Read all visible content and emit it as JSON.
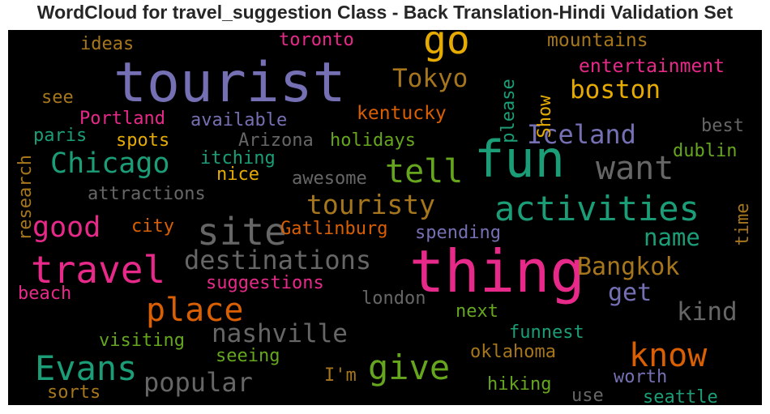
{
  "chart_data": {
    "type": "wordcloud",
    "title": "WordCloud for travel_suggestion Class - Back Translation-Hindi Validation Set",
    "background": "#000000",
    "colormap": "Dark2",
    "words": [
      {
        "text": "tourist",
        "weight": 68,
        "color": "#7570b3"
      },
      {
        "text": "thing",
        "weight": 72,
        "color": "#e7298a"
      },
      {
        "text": "fun",
        "weight": 62,
        "color": "#1b9e77"
      },
      {
        "text": "go",
        "weight": 48,
        "color": "#e6ab02"
      },
      {
        "text": "travel",
        "weight": 46,
        "color": "#e7298a"
      },
      {
        "text": "site",
        "weight": 46,
        "color": "#666666"
      },
      {
        "text": "activities",
        "weight": 42,
        "color": "#1b9e77"
      },
      {
        "text": "Evans",
        "weight": 42,
        "color": "#1b9e77"
      },
      {
        "text": "give",
        "weight": 42,
        "color": "#66a61e"
      },
      {
        "text": "know",
        "weight": 40,
        "color": "#d95f02"
      },
      {
        "text": "place",
        "weight": 40,
        "color": "#d95f02"
      },
      {
        "text": "tell",
        "weight": 40,
        "color": "#66a61e"
      },
      {
        "text": "want",
        "weight": 40,
        "color": "#666666"
      },
      {
        "text": "Chicago",
        "weight": 35,
        "color": "#1b9e77"
      },
      {
        "text": "good",
        "weight": 35,
        "color": "#e7298a"
      },
      {
        "text": "touristy",
        "weight": 33,
        "color": "#a6761d"
      },
      {
        "text": "destinations",
        "weight": 32,
        "color": "#666666"
      },
      {
        "text": "popular",
        "weight": 32,
        "color": "#666666"
      },
      {
        "text": "Iceland",
        "weight": 32,
        "color": "#7570b3"
      },
      {
        "text": "boston",
        "weight": 31,
        "color": "#e6ab02"
      },
      {
        "text": "Tokyo",
        "weight": 31,
        "color": "#a6761d"
      },
      {
        "text": "nashville",
        "weight": 31,
        "color": "#666666"
      },
      {
        "text": "kind",
        "weight": 31,
        "color": "#666666"
      },
      {
        "text": "Bangkok",
        "weight": 30,
        "color": "#a6761d"
      },
      {
        "text": "get",
        "weight": 30,
        "color": "#7570b3"
      },
      {
        "text": "name",
        "weight": 29,
        "color": "#1b9e77"
      },
      {
        "text": "mountains",
        "weight": 23,
        "color": "#a6761d"
      },
      {
        "text": "entertainment",
        "weight": 23,
        "color": "#e7298a"
      },
      {
        "text": "kentucky",
        "weight": 23,
        "color": "#d95f02"
      },
      {
        "text": "Gatlinburg",
        "weight": 22,
        "color": "#d95f02"
      },
      {
        "text": "suggestions",
        "weight": 22,
        "color": "#e7298a"
      },
      {
        "text": "Portland",
        "weight": 22,
        "color": "#e7298a"
      },
      {
        "text": "available",
        "weight": 22,
        "color": "#7570b3"
      },
      {
        "text": "attractions",
        "weight": 22,
        "color": "#666666"
      },
      {
        "text": "spending",
        "weight": 22,
        "color": "#7570b3"
      },
      {
        "text": "oklahoma",
        "weight": 22,
        "color": "#a6761d"
      },
      {
        "text": "visiting",
        "weight": 22,
        "color": "#66a61e"
      },
      {
        "text": "funnest",
        "weight": 22,
        "color": "#1b9e77"
      },
      {
        "text": "hiking",
        "weight": 22,
        "color": "#66a61e"
      },
      {
        "text": "worth",
        "weight": 22,
        "color": "#7570b3"
      },
      {
        "text": "seattle",
        "weight": 22,
        "color": "#1b9e77"
      },
      {
        "text": "ideas",
        "weight": 22,
        "color": "#a6761d"
      },
      {
        "text": "toronto",
        "weight": 22,
        "color": "#e7298a"
      },
      {
        "text": "holidays",
        "weight": 22,
        "color": "#66a61e"
      },
      {
        "text": "Arizona",
        "weight": 22,
        "color": "#666666"
      },
      {
        "text": "itching",
        "weight": 22,
        "color": "#1b9e77"
      },
      {
        "text": "awesome",
        "weight": 22,
        "color": "#666666"
      },
      {
        "text": "london",
        "weight": 22,
        "color": "#666666"
      },
      {
        "text": "seeing",
        "weight": 22,
        "color": "#66a61e"
      },
      {
        "text": "beach",
        "weight": 22,
        "color": "#e7298a"
      },
      {
        "text": "paris",
        "weight": 22,
        "color": "#1b9e77"
      },
      {
        "text": "spots",
        "weight": 22,
        "color": "#e6ab02"
      },
      {
        "text": "city",
        "weight": 22,
        "color": "#d95f02"
      },
      {
        "text": "nice",
        "weight": 22,
        "color": "#e6ab02"
      },
      {
        "text": "sorts",
        "weight": 22,
        "color": "#a6761d"
      },
      {
        "text": "I'm",
        "weight": 22,
        "color": "#a6761d"
      },
      {
        "text": "next",
        "weight": 22,
        "color": "#66a61e"
      },
      {
        "text": "see",
        "weight": 22,
        "color": "#a6761d"
      },
      {
        "text": "best",
        "weight": 22,
        "color": "#666666"
      },
      {
        "text": "dublin",
        "weight": 22,
        "color": "#66a61e"
      },
      {
        "text": "use",
        "weight": 22,
        "color": "#666666"
      },
      {
        "text": "please",
        "weight": 22,
        "color": "#1b9e77",
        "vertical": true
      },
      {
        "text": "Show",
        "weight": 22,
        "color": "#e6ab02",
        "vertical": true
      },
      {
        "text": "research",
        "weight": 22,
        "color": "#a6761d",
        "vertical": true
      },
      {
        "text": "time",
        "weight": 22,
        "color": "#a6761d",
        "vertical": true
      }
    ]
  }
}
